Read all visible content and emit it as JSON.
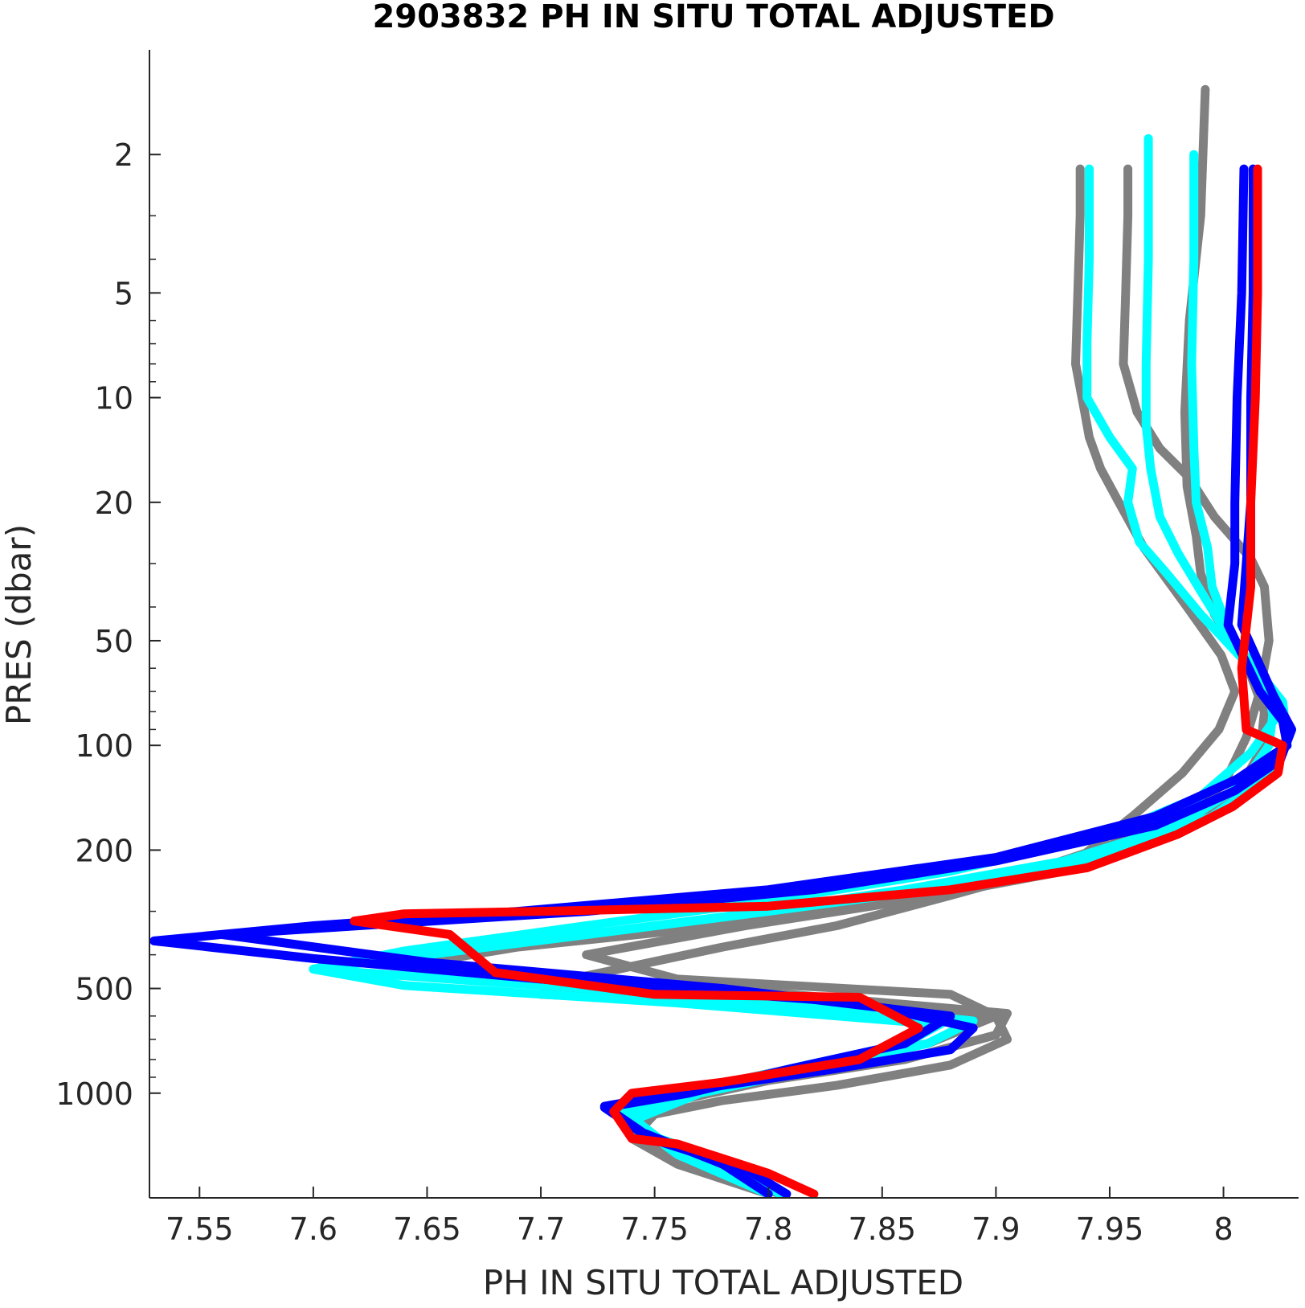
{
  "chart_data": {
    "type": "line",
    "title": "2903832  PH IN SITU TOTAL ADJUSTED",
    "xlabel": "PH IN SITU TOTAL ADJUSTED",
    "ylabel": "PRES (dbar)",
    "xlim": [
      7.528,
      8.033
    ],
    "ylim": [
      1,
      2000
    ],
    "y_scale": "log",
    "y_reversed": true,
    "grid": false,
    "x_ticks": [
      7.55,
      7.6,
      7.65,
      7.7,
      7.75,
      7.8,
      7.85,
      7.9,
      7.95,
      8
    ],
    "x_tick_labels": [
      "7.55",
      "7.6",
      "7.65",
      "7.7",
      "7.75",
      "7.8",
      "7.85",
      "7.9",
      "7.95",
      "8"
    ],
    "y_ticks": [
      2,
      5,
      10,
      20,
      50,
      100,
      200,
      500,
      1000
    ],
    "y_tick_labels": [
      "2",
      "5",
      "10",
      "20",
      "50",
      "100",
      "200",
      "500",
      "1000"
    ],
    "series": [
      {
        "color": "#808080",
        "x": [
          7.937,
          7.937,
          7.936,
          7.935,
          7.939,
          7.941,
          7.946,
          7.954,
          7.965,
          7.984,
          7.999,
          8.005,
          7.998,
          7.982,
          7.96,
          7.935,
          7.88,
          7.83,
          7.78,
          7.72,
          7.7,
          7.9,
          7.905,
          7.88,
          7.83,
          7.78,
          7.75,
          7.74,
          7.76,
          7.8
        ],
        "y": [
          2.2,
          3,
          5,
          8,
          11,
          13,
          16,
          20,
          27,
          40,
          55,
          70,
          90,
          120,
          160,
          215,
          270,
          330,
          380,
          460,
          520,
          600,
          700,
          830,
          950,
          1050,
          1150,
          1350,
          1600,
          1950
        ]
      },
      {
        "color": "#808080",
        "x": [
          7.958,
          7.958,
          7.957,
          7.956,
          7.962,
          7.972,
          7.985,
          7.996,
          8.012,
          8.018,
          8.02,
          8.016,
          8.01,
          8.0,
          7.97,
          7.92,
          7.85,
          7.78,
          7.69,
          7.64,
          7.78,
          7.905,
          7.9,
          7.86,
          7.8,
          7.76,
          7.735,
          7.745,
          7.77,
          7.805
        ],
        "y": [
          2.2,
          3,
          5,
          8,
          11,
          14,
          17,
          22,
          29,
          35,
          50,
          70,
          95,
          130,
          175,
          225,
          280,
          330,
          380,
          430,
          500,
          590,
          680,
          800,
          920,
          1050,
          1150,
          1350,
          1600,
          1950
        ]
      },
      {
        "color": "#808080",
        "x": [
          7.992,
          7.99,
          7.985,
          7.983,
          7.984,
          7.988,
          7.99,
          7.996,
          8.01,
          8.018,
          8.016,
          8.005,
          7.98,
          7.93,
          7.86,
          7.79,
          7.72,
          7.76,
          7.88,
          7.9,
          7.87,
          7.81,
          7.76,
          7.736,
          7.75,
          7.79,
          7.8
        ],
        "y": [
          1.3,
          3,
          6,
          11,
          18,
          25,
          32,
          42,
          58,
          80,
          105,
          140,
          180,
          230,
          280,
          330,
          400,
          470,
          520,
          600,
          720,
          850,
          1000,
          1150,
          1350,
          1650,
          1950
        ]
      },
      {
        "color": "#00ffff",
        "x": [
          7.941,
          7.941,
          7.94,
          7.94,
          7.95,
          7.96,
          7.958,
          7.963,
          7.975,
          7.99,
          8.008,
          8.02,
          8.022,
          8.012,
          7.99,
          7.95,
          7.88,
          7.8,
          7.72,
          7.64,
          7.6,
          7.68,
          7.8,
          7.89,
          7.87,
          7.82,
          7.77,
          7.74,
          7.76,
          7.8
        ],
        "y": [
          2.2,
          4,
          7,
          10,
          13,
          16,
          20,
          26,
          32,
          42,
          56,
          70,
          85,
          105,
          140,
          180,
          230,
          280,
          330,
          390,
          440,
          480,
          540,
          620,
          720,
          850,
          1000,
          1200,
          1500,
          1950
        ]
      },
      {
        "color": "#00ffff",
        "x": [
          7.967,
          7.967,
          7.966,
          7.966,
          7.968,
          7.972,
          7.98,
          7.99,
          8.0,
          8.014,
          8.022,
          8.02,
          8.008,
          7.98,
          7.93,
          7.86,
          7.79,
          7.72,
          7.65,
          7.6,
          7.64,
          7.76,
          7.87,
          7.85,
          7.8,
          7.76,
          7.735,
          7.75,
          7.79,
          7.805
        ],
        "y": [
          1.8,
          4,
          8,
          12,
          16,
          22,
          28,
          36,
          46,
          60,
          78,
          100,
          130,
          170,
          215,
          260,
          305,
          350,
          400,
          440,
          490,
          550,
          630,
          750,
          880,
          1000,
          1150,
          1350,
          1650,
          1950
        ]
      },
      {
        "color": "#00ffff",
        "x": [
          7.987,
          7.987,
          7.986,
          7.987,
          7.988,
          7.993,
          7.995,
          8.004,
          8.016,
          8.026,
          8.028,
          8.018,
          7.995,
          7.95,
          7.88,
          7.8,
          7.72,
          7.65,
          7.64,
          7.76,
          7.88,
          7.86,
          7.81,
          7.765,
          7.738,
          7.752,
          7.79,
          7.805
        ],
        "y": [
          2.0,
          4,
          8,
          14,
          20,
          27,
          35,
          50,
          62,
          75,
          95,
          125,
          160,
          205,
          255,
          300,
          350,
          400,
          450,
          520,
          610,
          720,
          850,
          1000,
          1150,
          1350,
          1650,
          1950
        ]
      },
      {
        "color": "#0000ff",
        "x": [
          8.009,
          8.008,
          8.006,
          8.005,
          8.005,
          8.002,
          8.016,
          8.026,
          8.028,
          8.006,
          7.97,
          7.9,
          7.8,
          7.69,
          7.6,
          7.53,
          7.6,
          7.7,
          7.84,
          7.89,
          7.88,
          7.83,
          7.78,
          7.728,
          7.745,
          7.78,
          7.8
        ],
        "y": [
          2.2,
          5,
          10,
          20,
          30,
          45,
          70,
          85,
          100,
          125,
          160,
          210,
          260,
          300,
          330,
          365,
          410,
          470,
          550,
          650,
          750,
          850,
          950,
          1090,
          1300,
          1600,
          1950
        ]
      },
      {
        "color": "#0000ff",
        "x": [
          8.013,
          8.013,
          8.012,
          8.012,
          8.01,
          8.008,
          8.022,
          8.03,
          8.025,
          8.005,
          7.97,
          7.9,
          7.82,
          7.72,
          7.62,
          7.56,
          7.65,
          7.78,
          7.88,
          7.86,
          7.81,
          7.765,
          7.728,
          7.748,
          7.79,
          7.808
        ],
        "y": [
          2.2,
          5,
          10,
          20,
          30,
          45,
          72,
          90,
          110,
          135,
          170,
          215,
          260,
          300,
          330,
          350,
          420,
          500,
          600,
          720,
          850,
          1000,
          1100,
          1350,
          1650,
          1950
        ]
      },
      {
        "color": "#ff0000",
        "x": [
          8.015,
          8.015,
          8.014,
          8.012,
          8.012,
          8.008,
          8.01,
          8.026,
          8.024,
          8.004,
          7.98,
          7.94,
          7.88,
          7.8,
          7.7,
          7.64,
          7.618,
          7.66,
          7.68,
          7.75,
          7.84,
          7.866,
          7.84,
          7.78,
          7.74,
          7.732,
          7.74,
          7.76,
          7.8,
          7.82
        ],
        "y": [
          2.2,
          5,
          10,
          20,
          35,
          60,
          90,
          100,
          120,
          150,
          180,
          225,
          260,
          290,
          300,
          305,
          320,
          350,
          450,
          520,
          530,
          650,
          800,
          930,
          1000,
          1130,
          1350,
          1400,
          1700,
          1950
        ]
      }
    ]
  }
}
